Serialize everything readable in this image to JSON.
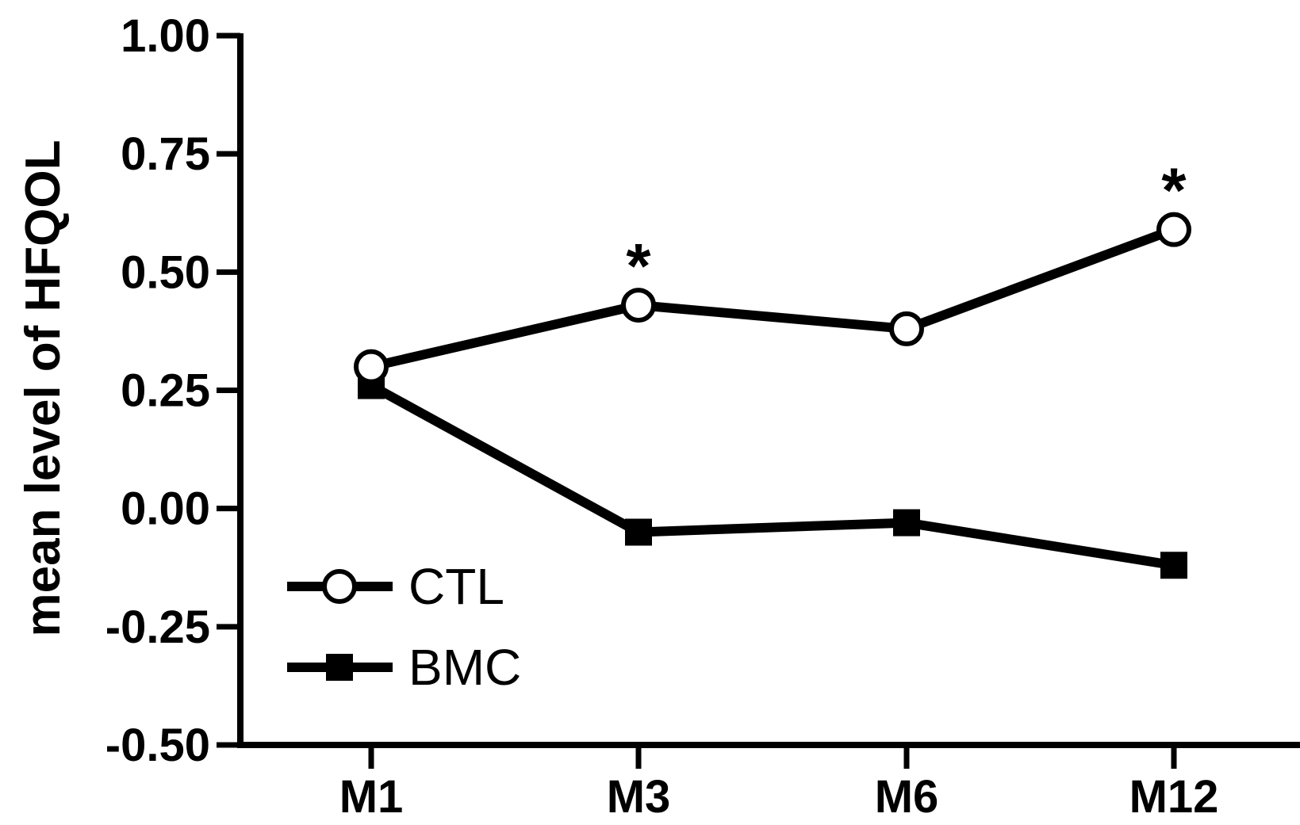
{
  "chart_data": {
    "type": "line",
    "title": "",
    "xlabel": "",
    "ylabel": "mean level of HFQOL",
    "categories": [
      "M1",
      "M3",
      "M6",
      "M12"
    ],
    "ylim": [
      -0.5,
      1.0
    ],
    "yticks": [
      "1.00",
      "0.75",
      "0.50",
      "0.25",
      "0.00",
      "-0.25",
      "-0.50"
    ],
    "series": [
      {
        "name": "CTL",
        "marker": "open-circle",
        "values": [
          0.3,
          0.43,
          0.38,
          0.59
        ]
      },
      {
        "name": "BMC",
        "marker": "filled-square",
        "values": [
          0.26,
          -0.05,
          -0.03,
          -0.12
        ]
      }
    ],
    "annotations": [
      {
        "category": "M3",
        "text": "*"
      },
      {
        "category": "M12",
        "text": "*"
      }
    ],
    "legend_position": "bottom-left",
    "grid": false,
    "colors": {
      "line": "#000000",
      "background": "#ffffff"
    }
  }
}
